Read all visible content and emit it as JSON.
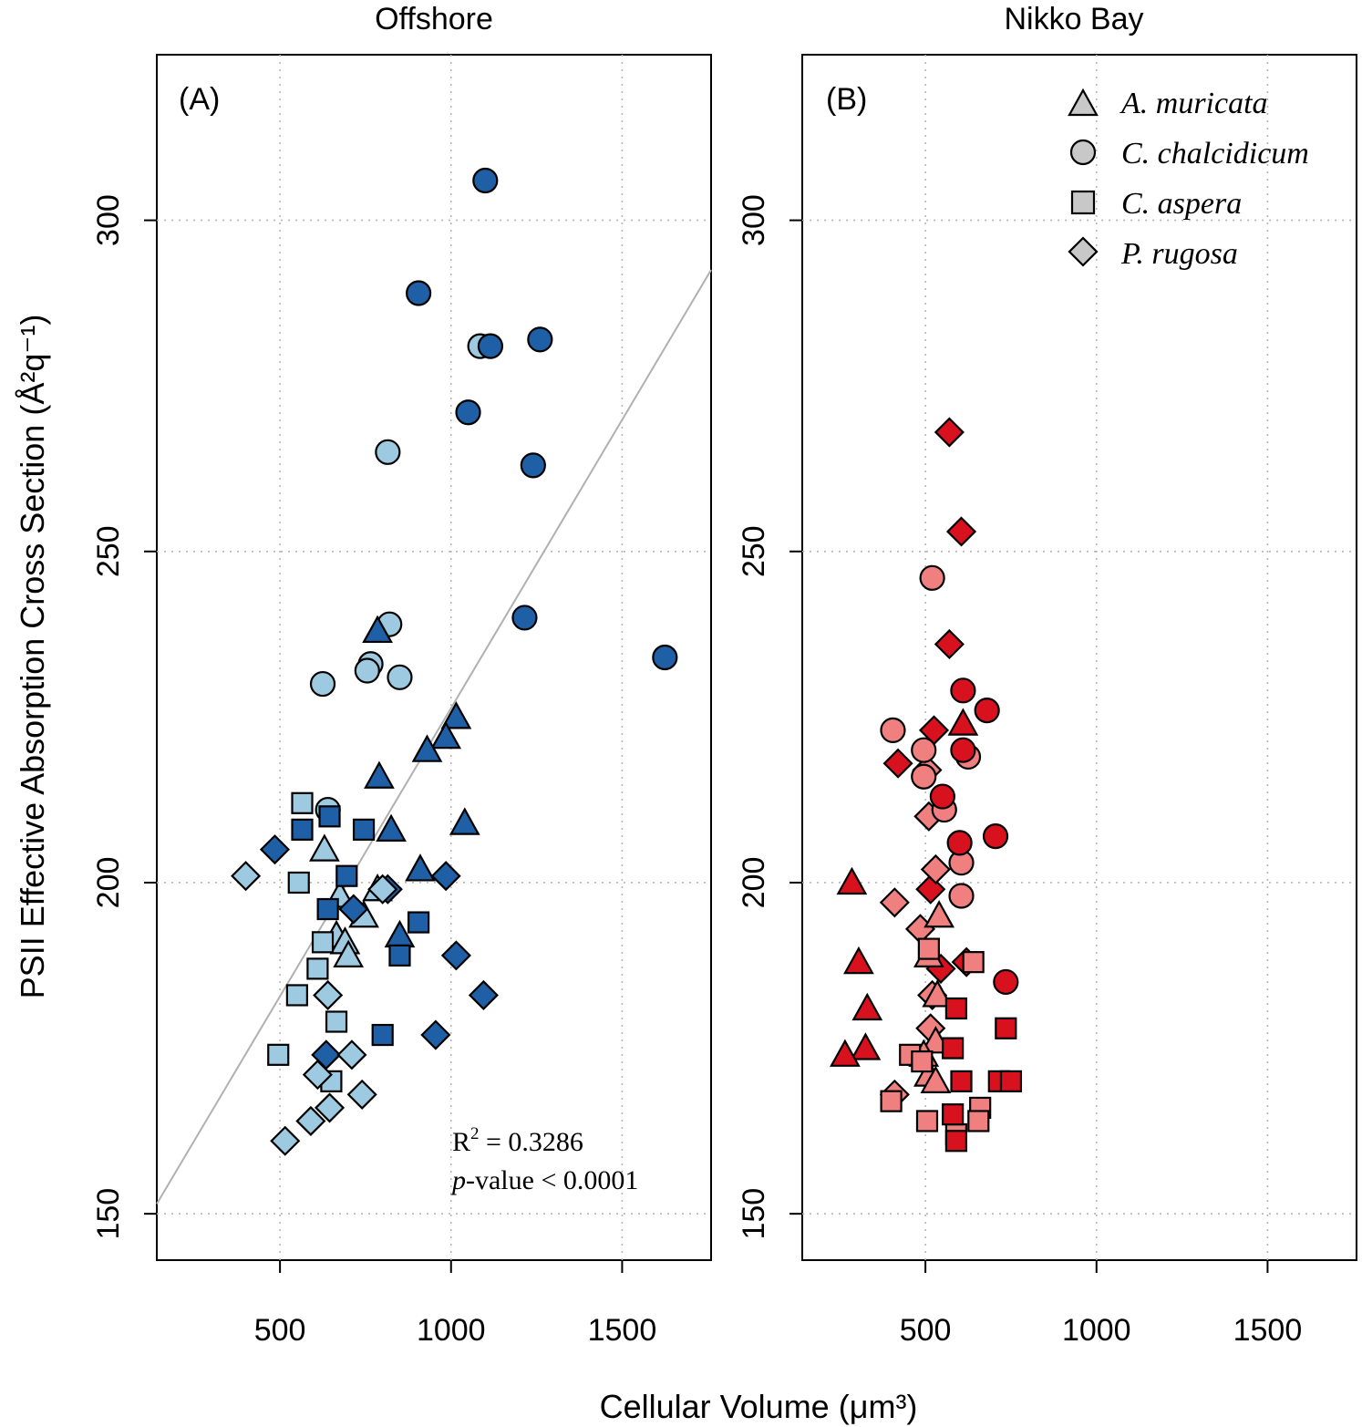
{
  "chart_data": {
    "type": "scatter",
    "ylabel": "PSII Effective Absorption Cross Section",
    "ylabel_unit": "(Å²q⁻¹)",
    "xlabel": "Cellular Volume",
    "xlabel_unit": "(μm³)",
    "xlim": [
      140,
      1760
    ],
    "ylim": [
      143,
      325
    ],
    "x_ticks": [
      "500",
      "1000",
      "1500"
    ],
    "x_tick_values": [
      500,
      1000,
      1500
    ],
    "y_ticks": [
      "150",
      "200",
      "250",
      "300"
    ],
    "y_tick_values": [
      150,
      200,
      250,
      300
    ],
    "grid": true,
    "legend": {
      "placement": "top-right of panel B",
      "entries": [
        {
          "label": "A. muricata",
          "shape": "triangle"
        },
        {
          "label": "C. chalcidicum",
          "shape": "circle"
        },
        {
          "label": "C. aspera",
          "shape": "square"
        },
        {
          "label": "P. rugosa",
          "shape": "diamond"
        }
      ]
    },
    "colors": {
      "offshore_dark": "#1f5fa6",
      "offshore_light": "#9ecae1",
      "nikko_dark": "#d7111e",
      "nikko_light": "#f08080",
      "regression_line": "#b0b0b0",
      "grid": "#b5b5b5"
    },
    "panels": [
      {
        "id": "A",
        "title": "Offshore",
        "label": "(A)",
        "regression": {
          "x": [
            140,
            1760
          ],
          "y": [
            151.5,
            292.5
          ],
          "r2_label": "R",
          "r2_value": " = 0.3286",
          "p_label": "p",
          "p_value": "-value < 0.0001"
        },
        "points": [
          {
            "species": "C. chalcidicum",
            "shade": "dark",
            "x": 1100,
            "y": 306
          },
          {
            "species": "C. chalcidicum",
            "shade": "dark",
            "x": 905,
            "y": 289
          },
          {
            "species": "C. chalcidicum",
            "shade": "light",
            "x": 1085,
            "y": 281
          },
          {
            "species": "C. chalcidicum",
            "shade": "dark",
            "x": 1115,
            "y": 281
          },
          {
            "species": "C. chalcidicum",
            "shade": "dark",
            "x": 1260,
            "y": 282
          },
          {
            "species": "C. chalcidicum",
            "shade": "dark",
            "x": 1050,
            "y": 271
          },
          {
            "species": "C. chalcidicum",
            "shade": "light",
            "x": 815,
            "y": 265
          },
          {
            "species": "C. chalcidicum",
            "shade": "dark",
            "x": 1240,
            "y": 263
          },
          {
            "species": "C. chalcidicum",
            "shade": "dark",
            "x": 1215,
            "y": 240
          },
          {
            "species": "C. chalcidicum",
            "shade": "dark",
            "x": 1625,
            "y": 234
          },
          {
            "species": "C. chalcidicum",
            "shade": "light",
            "x": 820,
            "y": 239
          },
          {
            "species": "C. chalcidicum",
            "shade": "light",
            "x": 765,
            "y": 233
          },
          {
            "species": "C. chalcidicum",
            "shade": "light",
            "x": 755,
            "y": 232
          },
          {
            "species": "C. chalcidicum",
            "shade": "light",
            "x": 850,
            "y": 231
          },
          {
            "species": "C. chalcidicum",
            "shade": "light",
            "x": 625,
            "y": 230
          },
          {
            "species": "C. chalcidicum",
            "shade": "light",
            "x": 640,
            "y": 211
          },
          {
            "species": "A. muricata",
            "shade": "dark",
            "x": 785,
            "y": 238
          },
          {
            "species": "A. muricata",
            "shade": "dark",
            "x": 1015,
            "y": 225
          },
          {
            "species": "A. muricata",
            "shade": "dark",
            "x": 985,
            "y": 222
          },
          {
            "species": "A. muricata",
            "shade": "dark",
            "x": 930,
            "y": 220
          },
          {
            "species": "A. muricata",
            "shade": "dark",
            "x": 790,
            "y": 216
          },
          {
            "species": "A. muricata",
            "shade": "dark",
            "x": 1040,
            "y": 209
          },
          {
            "species": "A. muricata",
            "shade": "dark",
            "x": 825,
            "y": 208
          },
          {
            "species": "A. muricata",
            "shade": "dark",
            "x": 910,
            "y": 202
          },
          {
            "species": "A. muricata",
            "shade": "dark",
            "x": 850,
            "y": 192
          },
          {
            "species": "A. muricata",
            "shade": "light",
            "x": 630,
            "y": 205
          },
          {
            "species": "A. muricata",
            "shade": "light",
            "x": 785,
            "y": 199
          },
          {
            "species": "A. muricata",
            "shade": "light",
            "x": 745,
            "y": 195
          },
          {
            "species": "A. muricata",
            "shade": "light",
            "x": 675,
            "y": 198
          },
          {
            "species": "A. muricata",
            "shade": "light",
            "x": 665,
            "y": 192
          },
          {
            "species": "A. muricata",
            "shade": "light",
            "x": 690,
            "y": 191
          },
          {
            "species": "A. muricata",
            "shade": "light",
            "x": 700,
            "y": 189
          },
          {
            "species": "C. aspera",
            "shade": "light",
            "x": 565,
            "y": 212
          },
          {
            "species": "C. aspera",
            "shade": "light",
            "x": 555,
            "y": 200
          },
          {
            "species": "C. aspera",
            "shade": "light",
            "x": 625,
            "y": 191
          },
          {
            "species": "C. aspera",
            "shade": "light",
            "x": 610,
            "y": 187
          },
          {
            "species": "C. aspera",
            "shade": "light",
            "x": 550,
            "y": 183
          },
          {
            "species": "C. aspera",
            "shade": "light",
            "x": 665,
            "y": 179
          },
          {
            "species": "C. aspera",
            "shade": "light",
            "x": 495,
            "y": 174
          },
          {
            "species": "C. aspera",
            "shade": "light",
            "x": 650,
            "y": 170
          },
          {
            "species": "C. aspera",
            "shade": "dark",
            "x": 565,
            "y": 208
          },
          {
            "species": "C. aspera",
            "shade": "dark",
            "x": 645,
            "y": 210
          },
          {
            "species": "C. aspera",
            "shade": "dark",
            "x": 745,
            "y": 208
          },
          {
            "species": "C. aspera",
            "shade": "dark",
            "x": 695,
            "y": 201
          },
          {
            "species": "C. aspera",
            "shade": "dark",
            "x": 640,
            "y": 196
          },
          {
            "species": "C. aspera",
            "shade": "dark",
            "x": 905,
            "y": 194
          },
          {
            "species": "C. aspera",
            "shade": "dark",
            "x": 850,
            "y": 189
          },
          {
            "species": "C. aspera",
            "shade": "dark",
            "x": 800,
            "y": 177
          },
          {
            "species": "P. rugosa",
            "shade": "dark",
            "x": 485,
            "y": 205
          },
          {
            "species": "P. rugosa",
            "shade": "dark",
            "x": 815,
            "y": 199
          },
          {
            "species": "P. rugosa",
            "shade": "dark",
            "x": 985,
            "y": 201
          },
          {
            "species": "P. rugosa",
            "shade": "dark",
            "x": 715,
            "y": 196
          },
          {
            "species": "P. rugosa",
            "shade": "dark",
            "x": 1015,
            "y": 189
          },
          {
            "species": "P. rugosa",
            "shade": "dark",
            "x": 1095,
            "y": 183
          },
          {
            "species": "P. rugosa",
            "shade": "dark",
            "x": 955,
            "y": 177
          },
          {
            "species": "P. rugosa",
            "shade": "dark",
            "x": 635,
            "y": 174
          },
          {
            "species": "P. rugosa",
            "shade": "light",
            "x": 400,
            "y": 201
          },
          {
            "species": "P. rugosa",
            "shade": "light",
            "x": 800,
            "y": 199
          },
          {
            "species": "P. rugosa",
            "shade": "light",
            "x": 640,
            "y": 183
          },
          {
            "species": "P. rugosa",
            "shade": "light",
            "x": 710,
            "y": 174
          },
          {
            "species": "P. rugosa",
            "shade": "light",
            "x": 610,
            "y": 171
          },
          {
            "species": "P. rugosa",
            "shade": "light",
            "x": 740,
            "y": 168
          },
          {
            "species": "P. rugosa",
            "shade": "light",
            "x": 645,
            "y": 166
          },
          {
            "species": "P. rugosa",
            "shade": "light",
            "x": 590,
            "y": 164
          },
          {
            "species": "P. rugosa",
            "shade": "light",
            "x": 515,
            "y": 161
          }
        ]
      },
      {
        "id": "B",
        "title": "Nikko Bay",
        "label": "(B)",
        "points": [
          {
            "species": "P. rugosa",
            "shade": "dark",
            "x": 570,
            "y": 268
          },
          {
            "species": "P. rugosa",
            "shade": "dark",
            "x": 605,
            "y": 253
          },
          {
            "species": "P. rugosa",
            "shade": "dark",
            "x": 570,
            "y": 236
          },
          {
            "species": "P. rugosa",
            "shade": "dark",
            "x": 525,
            "y": 223
          },
          {
            "species": "P. rugosa",
            "shade": "dark",
            "x": 420,
            "y": 218
          },
          {
            "species": "P. rugosa",
            "shade": "dark",
            "x": 515,
            "y": 199
          },
          {
            "species": "P. rugosa",
            "shade": "dark",
            "x": 545,
            "y": 187
          },
          {
            "species": "P. rugosa",
            "shade": "dark",
            "x": 620,
            "y": 188
          },
          {
            "species": "P. rugosa",
            "shade": "light",
            "x": 505,
            "y": 217
          },
          {
            "species": "P. rugosa",
            "shade": "light",
            "x": 510,
            "y": 210
          },
          {
            "species": "P. rugosa",
            "shade": "light",
            "x": 530,
            "y": 202
          },
          {
            "species": "P. rugosa",
            "shade": "light",
            "x": 410,
            "y": 197
          },
          {
            "species": "P. rugosa",
            "shade": "light",
            "x": 485,
            "y": 193
          },
          {
            "species": "P. rugosa",
            "shade": "light",
            "x": 520,
            "y": 183
          },
          {
            "species": "P. rugosa",
            "shade": "light",
            "x": 515,
            "y": 178
          },
          {
            "species": "P. rugosa",
            "shade": "light",
            "x": 410,
            "y": 168
          },
          {
            "species": "C. chalcidicum",
            "shade": "light",
            "x": 520,
            "y": 246
          },
          {
            "species": "C. chalcidicum",
            "shade": "light",
            "x": 405,
            "y": 223
          },
          {
            "species": "C. chalcidicum",
            "shade": "light",
            "x": 495,
            "y": 220
          },
          {
            "species": "C. chalcidicum",
            "shade": "light",
            "x": 625,
            "y": 219
          },
          {
            "species": "C. chalcidicum",
            "shade": "light",
            "x": 495,
            "y": 216
          },
          {
            "species": "C. chalcidicum",
            "shade": "light",
            "x": 555,
            "y": 211
          },
          {
            "species": "C. chalcidicum",
            "shade": "light",
            "x": 605,
            "y": 203
          },
          {
            "species": "C. chalcidicum",
            "shade": "light",
            "x": 605,
            "y": 198
          },
          {
            "species": "C. chalcidicum",
            "shade": "dark",
            "x": 610,
            "y": 229
          },
          {
            "species": "C. chalcidicum",
            "shade": "dark",
            "x": 680,
            "y": 226
          },
          {
            "species": "C. chalcidicum",
            "shade": "dark",
            "x": 610,
            "y": 220
          },
          {
            "species": "C. chalcidicum",
            "shade": "dark",
            "x": 550,
            "y": 213
          },
          {
            "species": "C. chalcidicum",
            "shade": "dark",
            "x": 705,
            "y": 207
          },
          {
            "species": "C. chalcidicum",
            "shade": "dark",
            "x": 600,
            "y": 206
          },
          {
            "species": "C. chalcidicum",
            "shade": "dark",
            "x": 735,
            "y": 185
          },
          {
            "species": "A. muricata",
            "shade": "dark",
            "x": 610,
            "y": 224
          },
          {
            "species": "A. muricata",
            "shade": "dark",
            "x": 285,
            "y": 200
          },
          {
            "species": "A. muricata",
            "shade": "dark",
            "x": 305,
            "y": 188
          },
          {
            "species": "A. muricata",
            "shade": "dark",
            "x": 330,
            "y": 181
          },
          {
            "species": "A. muricata",
            "shade": "dark",
            "x": 325,
            "y": 175
          },
          {
            "species": "A. muricata",
            "shade": "dark",
            "x": 265,
            "y": 174
          },
          {
            "species": "A. muricata",
            "shade": "light",
            "x": 540,
            "y": 195
          },
          {
            "species": "A. muricata",
            "shade": "light",
            "x": 510,
            "y": 189
          },
          {
            "species": "A. muricata",
            "shade": "light",
            "x": 535,
            "y": 183
          },
          {
            "species": "A. muricata",
            "shade": "light",
            "x": 530,
            "y": 176
          },
          {
            "species": "A. muricata",
            "shade": "light",
            "x": 495,
            "y": 174
          },
          {
            "species": "A. muricata",
            "shade": "light",
            "x": 510,
            "y": 171
          },
          {
            "species": "A. muricata",
            "shade": "light",
            "x": 530,
            "y": 170
          },
          {
            "species": "C. aspera",
            "shade": "light",
            "x": 510,
            "y": 190
          },
          {
            "species": "C. aspera",
            "shade": "light",
            "x": 640,
            "y": 188
          },
          {
            "species": "C. aspera",
            "shade": "light",
            "x": 455,
            "y": 174
          },
          {
            "species": "C. aspera",
            "shade": "light",
            "x": 490,
            "y": 173
          },
          {
            "species": "C. aspera",
            "shade": "light",
            "x": 400,
            "y": 167
          },
          {
            "species": "C. aspera",
            "shade": "light",
            "x": 660,
            "y": 166
          },
          {
            "species": "C. aspera",
            "shade": "light",
            "x": 505,
            "y": 164
          },
          {
            "species": "C. aspera",
            "shade": "light",
            "x": 655,
            "y": 164
          },
          {
            "species": "C. aspera",
            "shade": "light",
            "x": 590,
            "y": 162
          },
          {
            "species": "C. aspera",
            "shade": "dark",
            "x": 590,
            "y": 181
          },
          {
            "species": "C. aspera",
            "shade": "dark",
            "x": 735,
            "y": 178
          },
          {
            "species": "C. aspera",
            "shade": "dark",
            "x": 580,
            "y": 175
          },
          {
            "species": "C. aspera",
            "shade": "dark",
            "x": 605,
            "y": 170
          },
          {
            "species": "C. aspera",
            "shade": "dark",
            "x": 715,
            "y": 170
          },
          {
            "species": "C. aspera",
            "shade": "dark",
            "x": 750,
            "y": 170
          },
          {
            "species": "C. aspera",
            "shade": "dark",
            "x": 580,
            "y": 165
          },
          {
            "species": "C. aspera",
            "shade": "dark",
            "x": 590,
            "y": 161
          }
        ]
      }
    ]
  }
}
